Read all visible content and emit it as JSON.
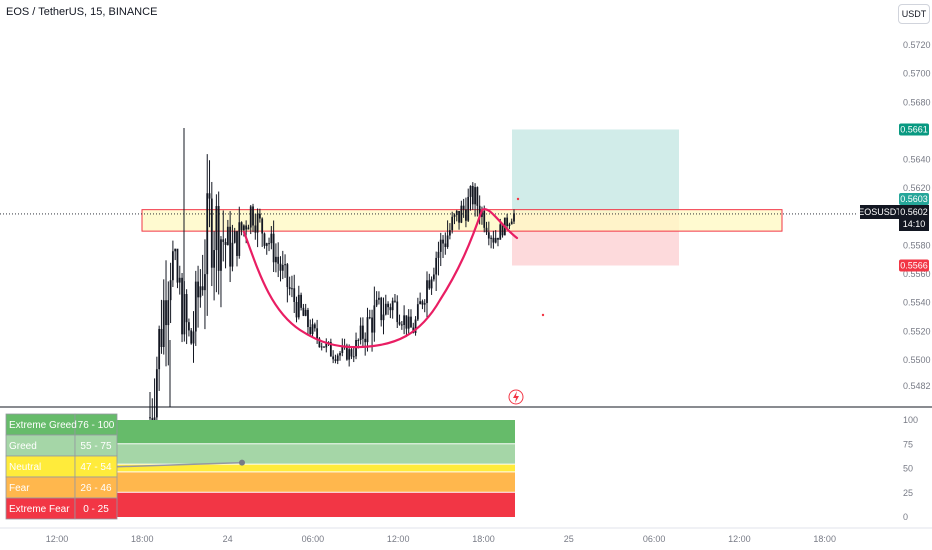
{
  "header": {
    "title": "EOS / TetherUS, 15, BINANCE",
    "currency_button": "USDT"
  },
  "price_axis": {
    "ticks": [
      "0.5720",
      "0.5700",
      "0.5680",
      "0.5640",
      "0.5620",
      "0.5580",
      "0.5560",
      "0.5540",
      "0.5520",
      "0.5500",
      "0.5482"
    ],
    "ticks_values": [
      0.572,
      0.57,
      0.568,
      0.564,
      0.562,
      0.558,
      0.556,
      0.554,
      0.552,
      0.55,
      0.5482
    ],
    "ymin": 0.5462,
    "ymax": 0.5735
  },
  "price_tags": {
    "target": {
      "label": "0.5661",
      "value": 0.5661,
      "color": "#089981"
    },
    "entry": {
      "label": "0.5603",
      "value": 0.5603,
      "color": "#26a69a"
    },
    "stop": {
      "label": "0.5566",
      "value": 0.5566,
      "color": "#f23645"
    },
    "symbol": "EOSUSDT",
    "last_price": "0.5602",
    "last_value": 0.5602,
    "countdown": "14:10"
  },
  "time_axis": {
    "labels": [
      "12:00",
      "18:00",
      "24",
      "06:00",
      "12:00",
      "18:00",
      "25",
      "06:00",
      "12:00",
      "18:00"
    ]
  },
  "indicator": {
    "axis_ticks": [
      "100",
      "75",
      "50",
      "25",
      "0"
    ],
    "axis_values": [
      100,
      75,
      50,
      25,
      0
    ],
    "zones": [
      {
        "name": "Extreme Greed",
        "range": "76 - 100",
        "from": 76,
        "to": 100,
        "color": "#66bb6a"
      },
      {
        "name": "Greed",
        "range": "55 - 75",
        "from": 55,
        "to": 75,
        "color": "#a5d6a7"
      },
      {
        "name": "Neutral",
        "range": "47 - 54",
        "from": 47,
        "to": 54,
        "color": "#ffeb3b"
      },
      {
        "name": "Fear",
        "range": "26 - 46",
        "from": 26,
        "to": 46,
        "color": "#ffb74d"
      },
      {
        "name": "Extreme Fear",
        "range": "0 - 25",
        "from": 0,
        "to": 25,
        "color": "#f23645"
      }
    ],
    "line_end_value": 56
  },
  "chart_data": {
    "type": "candlestick",
    "symbol": "EOS / TetherUS",
    "interval": "15",
    "exchange": "BINANCE",
    "resistance_zone": {
      "low": 0.559,
      "high": 0.5605
    },
    "long_position": {
      "entry": 0.5603,
      "target": 0.5661,
      "stop": 0.5566
    },
    "ohlc_path": [
      {
        "close": 0.546,
        "high": 0.559,
        "low": 0.545
      },
      {
        "close": 0.5575,
        "high": 0.559,
        "low": 0.546
      },
      {
        "close": 0.551,
        "high": 0.554,
        "low": 0.546
      },
      {
        "close": 0.56,
        "high": 0.5665,
        "low": 0.55
      },
      {
        "close": 0.5575,
        "high": 0.5605,
        "low": 0.554
      },
      {
        "close": 0.5605,
        "high": 0.561,
        "low": 0.556
      },
      {
        "close": 0.558,
        "high": 0.56,
        "low": 0.5555
      },
      {
        "close": 0.5545,
        "high": 0.558,
        "low": 0.553
      },
      {
        "close": 0.552,
        "high": 0.5545,
        "low": 0.5515
      },
      {
        "close": 0.5505,
        "high": 0.5525,
        "low": 0.5498
      },
      {
        "close": 0.5505,
        "high": 0.552,
        "low": 0.5495
      },
      {
        "close": 0.553,
        "high": 0.557,
        "low": 0.5505
      },
      {
        "close": 0.554,
        "high": 0.556,
        "low": 0.5515
      },
      {
        "close": 0.552,
        "high": 0.5535,
        "low": 0.5512
      },
      {
        "close": 0.557,
        "high": 0.558,
        "low": 0.5515
      },
      {
        "close": 0.5595,
        "high": 0.5605,
        "low": 0.5555
      },
      {
        "close": 0.5615,
        "high": 0.5625,
        "low": 0.558
      },
      {
        "close": 0.5585,
        "high": 0.5605,
        "low": 0.5575
      },
      {
        "close": 0.5602,
        "high": 0.5612,
        "low": 0.5595
      }
    ]
  }
}
